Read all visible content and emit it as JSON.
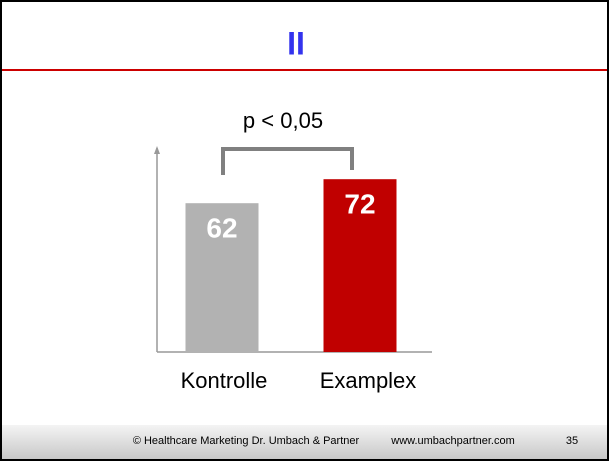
{
  "chart_data": {
    "type": "bar",
    "title": "II",
    "categories": [
      "Kontrolle",
      "Examplex"
    ],
    "values": [
      62,
      72
    ],
    "colors": [
      "#b2b2b2",
      "#c00000"
    ],
    "ylim": [
      0,
      85
    ],
    "annotation": "p < 0,05"
  },
  "footer": {
    "copyright": "© Healthcare Marketing Dr. Umbach & Partner",
    "url": "www.umbachpartner.com",
    "page": "35"
  }
}
